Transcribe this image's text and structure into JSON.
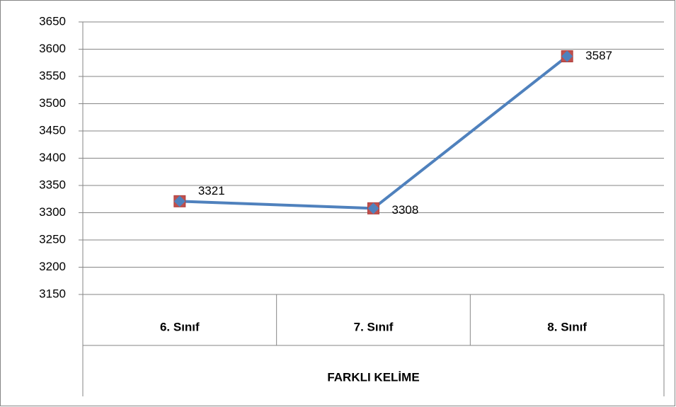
{
  "chart_data": {
    "type": "line",
    "categories": [
      "6. Sınıf",
      "7. Sınıf",
      "8. Sınıf"
    ],
    "group_label": "FARKLI KELİME",
    "series": [
      {
        "name": "FARKLI KELİME",
        "color": "#4f81bd",
        "marker_color": "#c0504d",
        "values": [
          3321,
          3308,
          3587
        ]
      }
    ],
    "ylim": [
      3150,
      3650
    ],
    "yticks": [
      3150,
      3200,
      3250,
      3300,
      3350,
      3400,
      3450,
      3500,
      3550,
      3600,
      3650
    ],
    "grid": true
  }
}
